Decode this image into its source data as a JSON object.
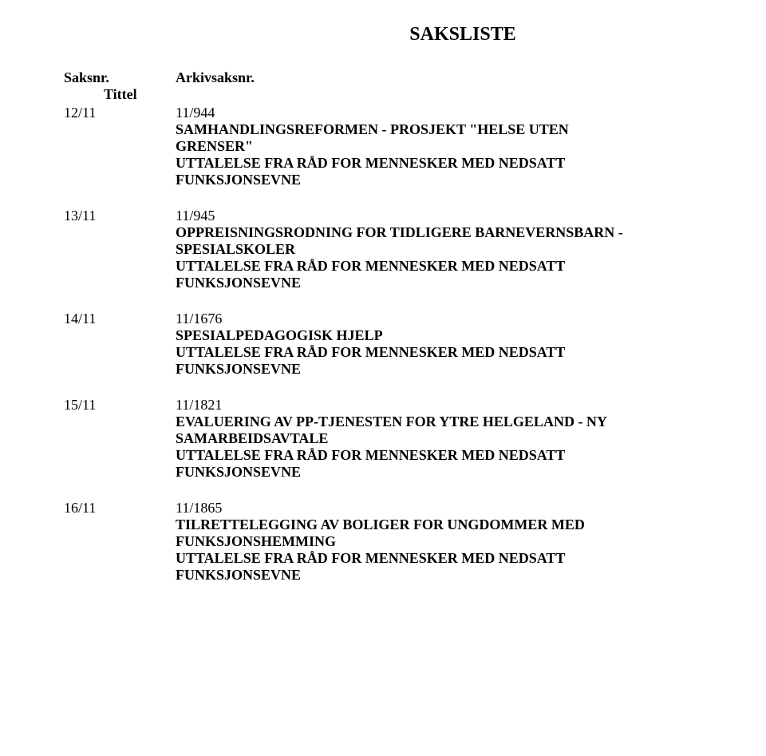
{
  "page_title": "SAKSLISTE",
  "headers": {
    "saksnr": "Saksnr.",
    "arkivsaksnr": "Arkivsaksnr.",
    "tittel": "Tittel"
  },
  "entries": [
    {
      "saksnr": "12/11",
      "arkivsaksnr": "11/944",
      "title_line1": "SAMHANDLINGSREFORMEN - PROSJEKT \"HELSE UTEN",
      "title_line2": "GRENSER\"",
      "uttalelse_line1": "UTTALELSE FRA RÅD FOR MENNESKER MED NEDSATT",
      "uttalelse_line2": "FUNKSJONSEVNE"
    },
    {
      "saksnr": "13/11",
      "arkivsaksnr": "11/945",
      "title_line1": "OPPREISNINGSRODNING FOR TIDLIGERE BARNEVERNSBARN -",
      "title_line2": "SPESIALSKOLER",
      "uttalelse_line1": "UTTALELSE FRA RÅD FOR MENNESKER MED NEDSATT",
      "uttalelse_line2": "FUNKSJONSEVNE"
    },
    {
      "saksnr": "14/11",
      "arkivsaksnr": "11/1676",
      "title_line1": "SPESIALPEDAGOGISK HJELP",
      "title_line2": "",
      "uttalelse_line1": "UTTALELSE FRA RÅD FOR MENNESKER MED NEDSATT",
      "uttalelse_line2": "FUNKSJONSEVNE"
    },
    {
      "saksnr": "15/11",
      "arkivsaksnr": "11/1821",
      "title_line1": "EVALUERING AV PP-TJENESTEN FOR YTRE HELGELAND - NY",
      "title_line2": "SAMARBEIDSAVTALE",
      "uttalelse_line1": "UTTALELSE FRA RÅD FOR MENNESKER MED NEDSATT",
      "uttalelse_line2": "FUNKSJONSEVNE"
    },
    {
      "saksnr": "16/11",
      "arkivsaksnr": "11/1865",
      "title_line1": "TILRETTELEGGING AV BOLIGER FOR UNGDOMMER MED",
      "title_line2": "FUNKSJONSHEMMING",
      "uttalelse_line1": "UTTALELSE FRA RÅD FOR MENNESKER MED NEDSATT",
      "uttalelse_line2": "FUNKSJONSEVNE"
    }
  ],
  "styles": {
    "background_color": "#ffffff",
    "text_color": "#000000",
    "font_family": "Times New Roman",
    "title_fontsize": 24,
    "body_fontsize": 18
  }
}
